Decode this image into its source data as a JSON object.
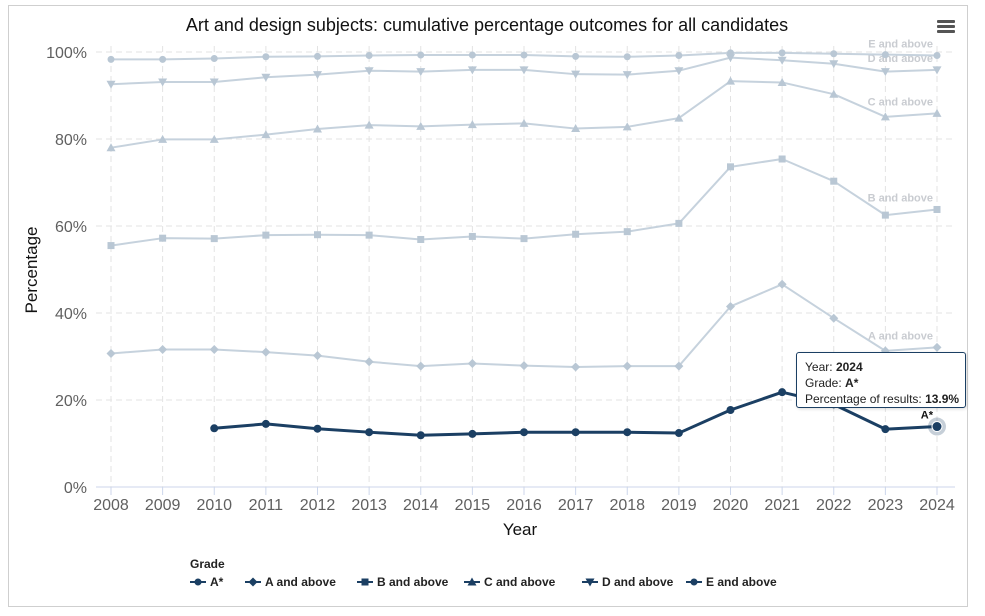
{
  "menu_icon": "hamburger-menu-icon",
  "colors": {
    "highlight": "#1b3f63",
    "faded": "#c6d2dd",
    "faded_marker": "#b9c7d4",
    "grid": "#e3e3e3"
  },
  "chart_data": {
    "type": "line",
    "title": "Art and design subjects: cumulative percentage outcomes for all candidates",
    "xlabel": "Year",
    "ylabel": "Percentage",
    "ylim": [
      0,
      100
    ],
    "y_ticks": [
      "0%",
      "20%",
      "40%",
      "60%",
      "80%",
      "100%"
    ],
    "x": [
      "2008",
      "2009",
      "2010",
      "2011",
      "2012",
      "2013",
      "2014",
      "2015",
      "2016",
      "2017",
      "2018",
      "2019",
      "2020",
      "2021",
      "2022",
      "2023",
      "2024"
    ],
    "grid": true,
    "legend_title": "Grade",
    "legend_placement": "bottom",
    "series": [
      {
        "name": "A*",
        "marker": "circle",
        "highlighted": true,
        "end_label": "A*",
        "values": [
          null,
          null,
          13.5,
          14.5,
          13.4,
          12.6,
          11.9,
          12.2,
          12.6,
          12.6,
          12.6,
          12.4,
          17.7,
          21.8,
          19.0,
          13.3,
          13.9
        ]
      },
      {
        "name": "A and above",
        "marker": "diamond",
        "highlighted": false,
        "end_label": "A and above",
        "values": [
          30.7,
          31.6,
          31.6,
          31.0,
          30.2,
          28.8,
          27.8,
          28.4,
          27.9,
          27.6,
          27.8,
          27.8,
          41.5,
          46.6,
          38.8,
          31.3,
          32.1
        ]
      },
      {
        "name": "B and above",
        "marker": "square",
        "highlighted": false,
        "end_label": "B and above",
        "values": [
          55.5,
          57.2,
          57.1,
          57.9,
          58.0,
          57.9,
          56.9,
          57.6,
          57.1,
          58.1,
          58.7,
          60.6,
          73.6,
          75.4,
          70.3,
          62.5,
          63.8
        ]
      },
      {
        "name": "C and above",
        "marker": "triangle",
        "highlighted": false,
        "end_label": "C and above",
        "values": [
          78.0,
          79.9,
          79.9,
          81.0,
          82.3,
          83.2,
          82.9,
          83.3,
          83.6,
          82.4,
          82.8,
          84.8,
          93.3,
          93.0,
          90.3,
          85.1,
          85.9
        ]
      },
      {
        "name": "D and above",
        "marker": "triangle-down",
        "highlighted": false,
        "end_label": "D and above",
        "values": [
          92.6,
          93.1,
          93.1,
          94.2,
          94.8,
          95.7,
          95.5,
          95.9,
          95.9,
          94.9,
          94.8,
          95.7,
          98.7,
          98.1,
          97.3,
          95.5,
          95.9
        ]
      },
      {
        "name": "E and above",
        "marker": "circle",
        "highlighted": false,
        "end_label": "E and above",
        "values": [
          98.3,
          98.3,
          98.5,
          98.9,
          99.0,
          99.2,
          99.3,
          99.3,
          99.3,
          99.0,
          98.9,
          99.2,
          99.8,
          99.8,
          99.6,
          99.4,
          99.2
        ]
      }
    ],
    "tooltip": {
      "year_label": "Year:",
      "year_value": "2024",
      "grade_label": "Grade:",
      "grade_value": "A*",
      "pct_label": "Percentage of results:",
      "pct_value": "13.9%"
    }
  }
}
